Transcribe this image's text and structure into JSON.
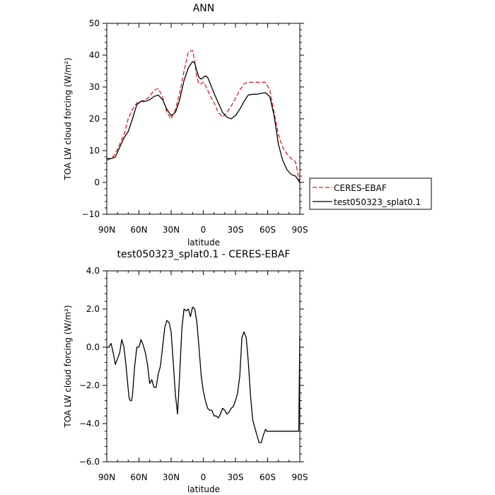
{
  "chart_data": [
    {
      "type": "line",
      "title": "ANN",
      "xlabel": "latitude",
      "ylabel": "TOA LW cloud forcing (W/m²)",
      "xlim": [
        90,
        -90
      ],
      "ylim": [
        -10,
        50
      ],
      "x_ticks": [
        90,
        60,
        30,
        0,
        -30,
        -60,
        -90
      ],
      "x_tick_labels": [
        "90N",
        "60N",
        "30N",
        "0",
        "30S",
        "60S",
        "90S"
      ],
      "y_ticks": [
        -10,
        0,
        10,
        20,
        30,
        40,
        50
      ],
      "y_tick_labels": [
        "−10",
        "0",
        "10",
        "20",
        "30",
        "40",
        "50"
      ],
      "legend_position": "right, outside plot",
      "series": [
        {
          "name": "CERES-EBAF",
          "color": "#e31a1c",
          "dash": "dashed",
          "x": [
            90,
            86,
            82,
            78,
            74,
            70,
            66,
            62,
            58,
            54,
            50,
            46,
            42,
            38,
            34,
            30,
            26,
            22,
            18,
            14,
            10,
            8,
            6,
            4,
            2,
            0,
            -2,
            -4,
            -6,
            -10,
            -14,
            -18,
            -22,
            -26,
            -30,
            -34,
            -38,
            -42,
            -46,
            -50,
            -54,
            -58,
            -62,
            -66,
            -70,
            -74,
            -78,
            -82,
            -86,
            -88,
            -90
          ],
          "y": [
            7,
            7.5,
            9,
            12,
            15,
            20,
            23,
            25,
            25.5,
            26,
            27,
            29,
            29.5,
            27,
            22,
            20,
            23,
            28,
            35,
            41,
            41.5,
            38,
            33,
            31,
            31,
            31.5,
            30.5,
            29,
            27.5,
            25,
            22,
            20.5,
            22,
            24,
            26.5,
            29,
            31,
            31.5,
            31.5,
            31.5,
            31.5,
            31.5,
            29,
            22,
            15,
            11,
            9,
            7.5,
            6.5,
            3,
            -0.5
          ]
        },
        {
          "name": "test050323_splat0.1",
          "color": "#000000",
          "dash": "solid",
          "x": [
            90,
            86,
            82,
            78,
            74,
            70,
            66,
            62,
            58,
            54,
            50,
            46,
            42,
            38,
            34,
            30,
            26,
            22,
            18,
            14,
            10,
            8,
            6,
            4,
            2,
            0,
            -2,
            -4,
            -6,
            -10,
            -14,
            -18,
            -22,
            -26,
            -30,
            -34,
            -38,
            -42,
            -46,
            -50,
            -54,
            -58,
            -62,
            -66,
            -70,
            -74,
            -78,
            -82,
            -86,
            -88,
            -90
          ],
          "y": [
            7.5,
            7.5,
            8,
            11,
            14,
            16,
            20,
            24.5,
            25.5,
            25.5,
            26,
            27,
            27.5,
            26,
            23,
            21,
            22,
            26,
            32,
            36,
            38,
            37.5,
            35,
            33,
            32.5,
            33,
            33.5,
            33,
            31.5,
            28,
            25,
            22,
            20.5,
            20,
            21,
            23,
            25.5,
            27.5,
            27.7,
            27.7,
            28,
            28.2,
            27,
            21,
            12,
            7,
            4,
            2.5,
            2,
            1,
            0
          ]
        }
      ]
    },
    {
      "type": "line",
      "title": "test050323_splat0.1 - CERES-EBAF",
      "xlabel": "latitude",
      "ylabel": "TOA LW cloud forcing (W/m²)",
      "xlim": [
        90,
        -90
      ],
      "ylim": [
        -6,
        4
      ],
      "x_ticks": [
        90,
        60,
        30,
        0,
        -30,
        -60,
        -90
      ],
      "x_tick_labels": [
        "90N",
        "60N",
        "30N",
        "0",
        "30S",
        "60S",
        "90S"
      ],
      "y_ticks": [
        -6,
        -4,
        -2,
        0,
        2,
        4
      ],
      "y_tick_labels": [
        "−6.0",
        "−4.0",
        "−2.0",
        "0.0",
        "2.0",
        "4.0"
      ],
      "series": [
        {
          "color": "#000000",
          "dash": "solid",
          "x": [
            90,
            88,
            86,
            84,
            82,
            80,
            78,
            76,
            74,
            72,
            70,
            69,
            68,
            67,
            66,
            64,
            62,
            60,
            58,
            56,
            54,
            52,
            50,
            48,
            46,
            44,
            42,
            40,
            38,
            36,
            34,
            32,
            30,
            28,
            26,
            24,
            22,
            20,
            18,
            16,
            14,
            12,
            10,
            8,
            6,
            4,
            2,
            0,
            -2,
            -4,
            -6,
            -8,
            -10,
            -12,
            -14,
            -16,
            -18,
            -20,
            -22,
            -24,
            -26,
            -28,
            -30,
            -32,
            -34,
            -36,
            -38,
            -40,
            -42,
            -44,
            -46,
            -48,
            -50,
            -52,
            -54,
            -56,
            -58,
            -59,
            -60,
            -62,
            -64,
            -66,
            -68,
            -70,
            -72,
            -74,
            -76,
            -78,
            -80,
            -82,
            -84,
            -86,
            -87,
            -88,
            -89,
            -90
          ],
          "x_note": "",
          "y": [
            0,
            0,
            0.2,
            -0.3,
            -0.9,
            -0.6,
            -0.3,
            0.4,
            0,
            -1,
            -2.2,
            -2.7,
            -2.8,
            -2.8,
            -2.5,
            -1,
            0,
            0,
            0.4,
            0.1,
            -0.3,
            -0.9,
            -1.9,
            -1.7,
            -2.1,
            -2.1,
            -1.4,
            -1,
            0,
            1,
            1.4,
            1.3,
            0.8,
            -0.8,
            -2.5,
            -3.5,
            -1.4,
            1,
            2,
            1.9,
            2,
            1.6,
            2.1,
            2,
            1.3,
            0,
            -1.5,
            -2.3,
            -2.8,
            -3.2,
            -3.3,
            -3.3,
            -3.6,
            -3.6,
            -3.7,
            -3.5,
            -3.2,
            -3.3,
            -3.5,
            -3.4,
            -3.2,
            -3.1,
            -2.8,
            -2.4,
            -1.5,
            0.5,
            0.8,
            0.5,
            -0.8,
            -2.5,
            -3.8,
            -4.2,
            -4.6,
            -5,
            -5,
            -4.6,
            -4.3,
            -4.4,
            -4.4,
            -4.4,
            -4.4,
            -4.4,
            -4.4,
            -4.4,
            -4.4,
            -4.4,
            -4.4,
            -4.4,
            -4.4,
            -4.4,
            -4.4,
            -4.4,
            -4.4,
            -4.4,
            -4.4,
            0.6
          ]
        }
      ]
    }
  ]
}
